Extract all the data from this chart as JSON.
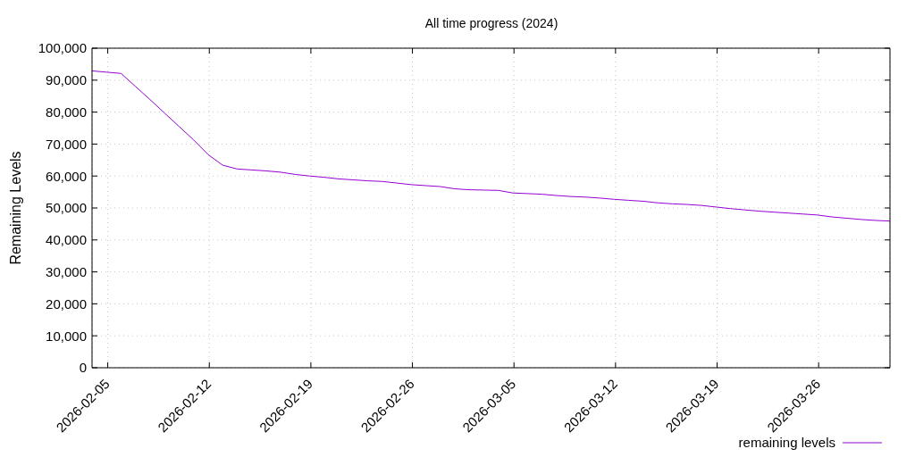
{
  "chart_data": {
    "type": "line",
    "title": "All time progress (2024)",
    "ylabel": "Remaining Levels",
    "x": [
      "2026-02-03T22:00",
      "2026-02-04T22:00",
      "2026-02-05T22:00",
      "2026-02-06T22:00",
      "2026-02-07T22:00",
      "2026-02-08T22:00",
      "2026-02-09T22:00",
      "2026-02-10T22:00",
      "2026-02-11T22:00",
      "2026-02-12T22:00",
      "2026-02-13T22:00",
      "2026-02-14T22:00",
      "2026-02-15T22:00",
      "2026-02-16T22:00",
      "2026-02-17T22:00",
      "2026-02-18T22:00",
      "2026-02-19T22:00",
      "2026-02-20T22:00",
      "2026-02-21T22:00",
      "2026-02-22T22:00",
      "2026-02-23T22:00",
      "2026-02-24T22:00",
      "2026-02-25T22:00",
      "2026-02-26T22:00",
      "2026-02-27T22:00",
      "2026-02-28T22:00",
      "2026-03-01T22:00",
      "2026-03-02T22:00",
      "2026-03-03T22:00",
      "2026-03-04T22:00",
      "2026-03-05T22:00",
      "2026-03-06T22:00",
      "2026-03-07T22:00",
      "2026-03-08T22:00",
      "2026-03-09T22:00",
      "2026-03-10T22:00",
      "2026-03-11T22:00",
      "2026-03-12T22:00",
      "2026-03-13T22:00",
      "2026-03-14T22:00",
      "2026-03-15T22:00",
      "2026-03-16T22:00",
      "2026-03-17T22:00",
      "2026-03-18T22:00",
      "2026-03-19T22:00",
      "2026-03-20T22:00",
      "2026-03-21T22:00",
      "2026-03-22T22:00",
      "2026-03-23T22:00",
      "2026-03-24T22:00",
      "2026-03-25T22:00",
      "2026-03-26T22:00",
      "2026-03-27T22:00",
      "2026-03-28T22:00",
      "2026-03-29T22:00",
      "2026-03-30T22:00"
    ],
    "series": [
      {
        "name": "remaining levels",
        "color": "#9400d3",
        "values": [
          92900,
          92500,
          92100,
          88000,
          83900,
          79700,
          75500,
          71300,
          66700,
          63400,
          62200,
          61900,
          61600,
          61200,
          60500,
          60000,
          59600,
          59100,
          58800,
          58500,
          58300,
          57800,
          57300,
          57000,
          56700,
          56000,
          55700,
          55600,
          55500,
          54700,
          54500,
          54300,
          53900,
          53600,
          53400,
          53100,
          52700,
          52400,
          52100,
          51600,
          51300,
          51100,
          50800,
          50300,
          49800,
          49400,
          49000,
          48700,
          48400,
          48100,
          47800,
          47200,
          46800,
          46400,
          46100,
          45900
        ]
      }
    ],
    "xlim": [
      "2026-02-03T22:00",
      "2026-03-30T22:00"
    ],
    "xticks": [
      "2026-02-05",
      "2026-02-12",
      "2026-02-19",
      "2026-02-26",
      "2026-03-05",
      "2026-03-12",
      "2026-03-19",
      "2026-03-26"
    ],
    "ylim": [
      0,
      100000
    ],
    "yticks": [
      0,
      {
        "value": 10000,
        "label": "10,000"
      },
      {
        "value": 20000,
        "label": "20,000"
      },
      {
        "value": 30000,
        "label": "30,000"
      },
      {
        "value": 40000,
        "label": "40,000"
      },
      {
        "value": 50000,
        "label": "50,000"
      },
      {
        "value": 60000,
        "label": "60,000"
      },
      {
        "value": 70000,
        "label": "70,000"
      },
      {
        "value": 80000,
        "label": "80,000"
      },
      {
        "value": 90000,
        "label": "90,000"
      },
      {
        "value": 100000,
        "label": "100,000"
      }
    ],
    "grid": true,
    "legend": "bottom right"
  }
}
